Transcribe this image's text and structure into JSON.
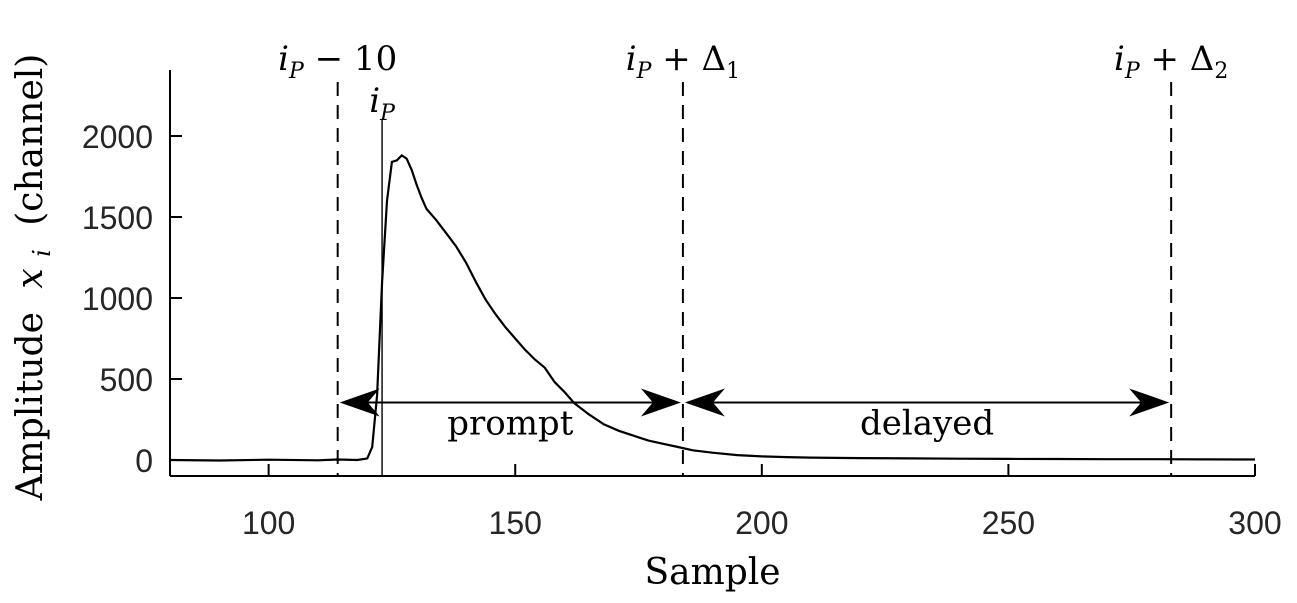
{
  "chart_data": {
    "type": "line",
    "title": "",
    "xlabel": "Sample",
    "ylabel": "Amplitude x_i (channel)",
    "ylabel_parts": {
      "prefix": "Amplitude",
      "var": "x",
      "sub": "i",
      "suffix": "(channel)"
    },
    "xlim": [
      80,
      300
    ],
    "ylim": [
      -100,
      2400
    ],
    "xticks": [
      100,
      150,
      200,
      250,
      300
    ],
    "yticks": [
      0,
      500,
      1000,
      1500,
      2000
    ],
    "grid": false,
    "series": [
      {
        "x": [
          80,
          90,
          100,
          110,
          114,
          118,
          120,
          121,
          122,
          123,
          124,
          125,
          126,
          127,
          128,
          129,
          130,
          131,
          132,
          134,
          136,
          138,
          140,
          142,
          144,
          146,
          148,
          150,
          152,
          154,
          156,
          158,
          160,
          162,
          165,
          168,
          171,
          174,
          177,
          180,
          183,
          186,
          190,
          195,
          200,
          205,
          210,
          220,
          230,
          240,
          250,
          260,
          270,
          280,
          290,
          300
        ],
        "y": [
          0,
          -3,
          2,
          -2,
          3,
          0,
          10,
          80,
          400,
          1100,
          1600,
          1840,
          1850,
          1880,
          1860,
          1790,
          1700,
          1620,
          1550,
          1480,
          1400,
          1320,
          1220,
          1100,
          990,
          900,
          820,
          750,
          680,
          620,
          570,
          480,
          420,
          350,
          280,
          220,
          180,
          150,
          120,
          100,
          80,
          60,
          45,
          30,
          22,
          18,
          15,
          12,
          10,
          8,
          7,
          6,
          5,
          5,
          4,
          3
        ]
      }
    ],
    "markers": [
      {
        "x": 114,
        "label": {
          "var": "i",
          "sub": "P",
          "rest": " − 10"
        },
        "style": "dashed"
      },
      {
        "x": 123,
        "label": {
          "var": "i",
          "sub": "P",
          "rest": ""
        },
        "style": "solid"
      },
      {
        "x": 184,
        "label": {
          "var": "i",
          "sub": "P",
          "rest": " + Δ",
          "rest_sub": "1"
        },
        "style": "dashed"
      },
      {
        "x": 283,
        "label": {
          "var": "i",
          "sub": "P",
          "rest": " + Δ",
          "rest_sub": "2"
        },
        "style": "dashed"
      }
    ],
    "intervals": [
      {
        "from": 114,
        "to": 184,
        "y": 380,
        "label": "prompt"
      },
      {
        "from": 184,
        "to": 283,
        "y": 380,
        "label": "delayed"
      }
    ]
  }
}
